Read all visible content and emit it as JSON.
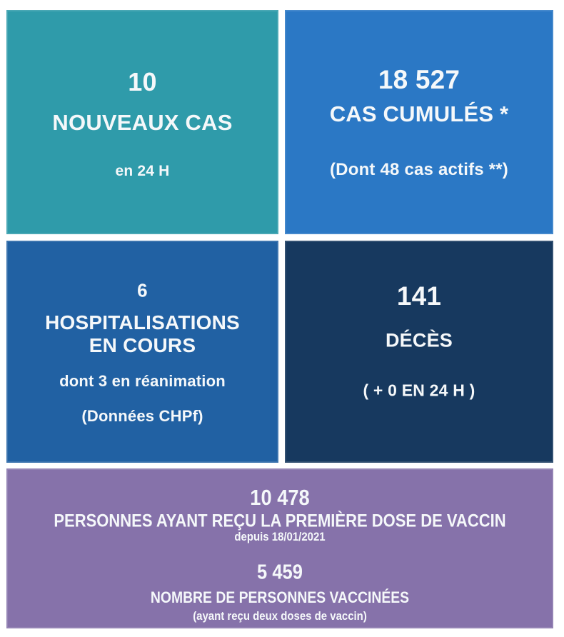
{
  "colors": {
    "teal": "#2F9BAA",
    "blue": "#2B78C5",
    "mid_blue": "#2161A3",
    "navy": "#17395F",
    "purple": "#8672AA",
    "background": "#FFFFFF",
    "text": "#F5F8FA"
  },
  "dashboard": {
    "cards": {
      "new_cases": {
        "value": "10",
        "label": "NOUVEAUX CAS",
        "sublabel": "en 24 H",
        "color": "#2F9BAA"
      },
      "cumulative_cases": {
        "value": "18 527",
        "label": "CAS CUMULÉS *",
        "sublabel": "(Dont 48 cas actifs **)",
        "color": "#2B78C5"
      },
      "hospitalizations": {
        "value": "6",
        "label_line1": "HOSPITALISATIONS",
        "label_line2": "EN COURS",
        "sublabel1": "dont 3 en réanimation",
        "sublabel2": "(Données CHPf)",
        "color": "#2161A3"
      },
      "deaths": {
        "value": "141",
        "label": "DÉCÈS",
        "sublabel": "( + 0 EN 24 H )",
        "color": "#17395F"
      }
    },
    "vaccination": {
      "color": "#8672AA",
      "first_dose_value": "10 478",
      "first_dose_label": "PERSONNES AYANT REÇU LA PREMIÈRE DOSE DE VACCIN",
      "first_dose_sublabel": "depuis 18/01/2021",
      "fully_vaccinated_value": "5 459",
      "fully_vaccinated_label": "NOMBRE DE PERSONNES VACCINÉES",
      "fully_vaccinated_sublabel": "(ayant reçu deux doses de vaccin)"
    }
  },
  "chart_data": {
    "type": "table",
    "indicators": [
      {
        "label": "NOUVEAUX CAS",
        "period": "en 24 H",
        "value": 10
      },
      {
        "label": "CAS CUMULÉS *",
        "note": "Dont 48 cas actifs **",
        "value": 18527
      },
      {
        "label": "HOSPITALISATIONS EN COURS",
        "note": "dont 3 en réanimation (Données CHPf)",
        "value": 6
      },
      {
        "label": "DÉCÈS",
        "note": "+ 0 EN 24 H",
        "value": 141
      },
      {
        "label": "PERSONNES AYANT REÇU LA PREMIÈRE DOSE DE VACCIN",
        "note": "depuis 18/01/2021",
        "value": 10478
      },
      {
        "label": "NOMBRE DE PERSONNES VACCINÉES",
        "note": "ayant reçu deux doses de vaccin",
        "value": 5459
      }
    ],
    "legend_position": "none",
    "grid": false
  }
}
